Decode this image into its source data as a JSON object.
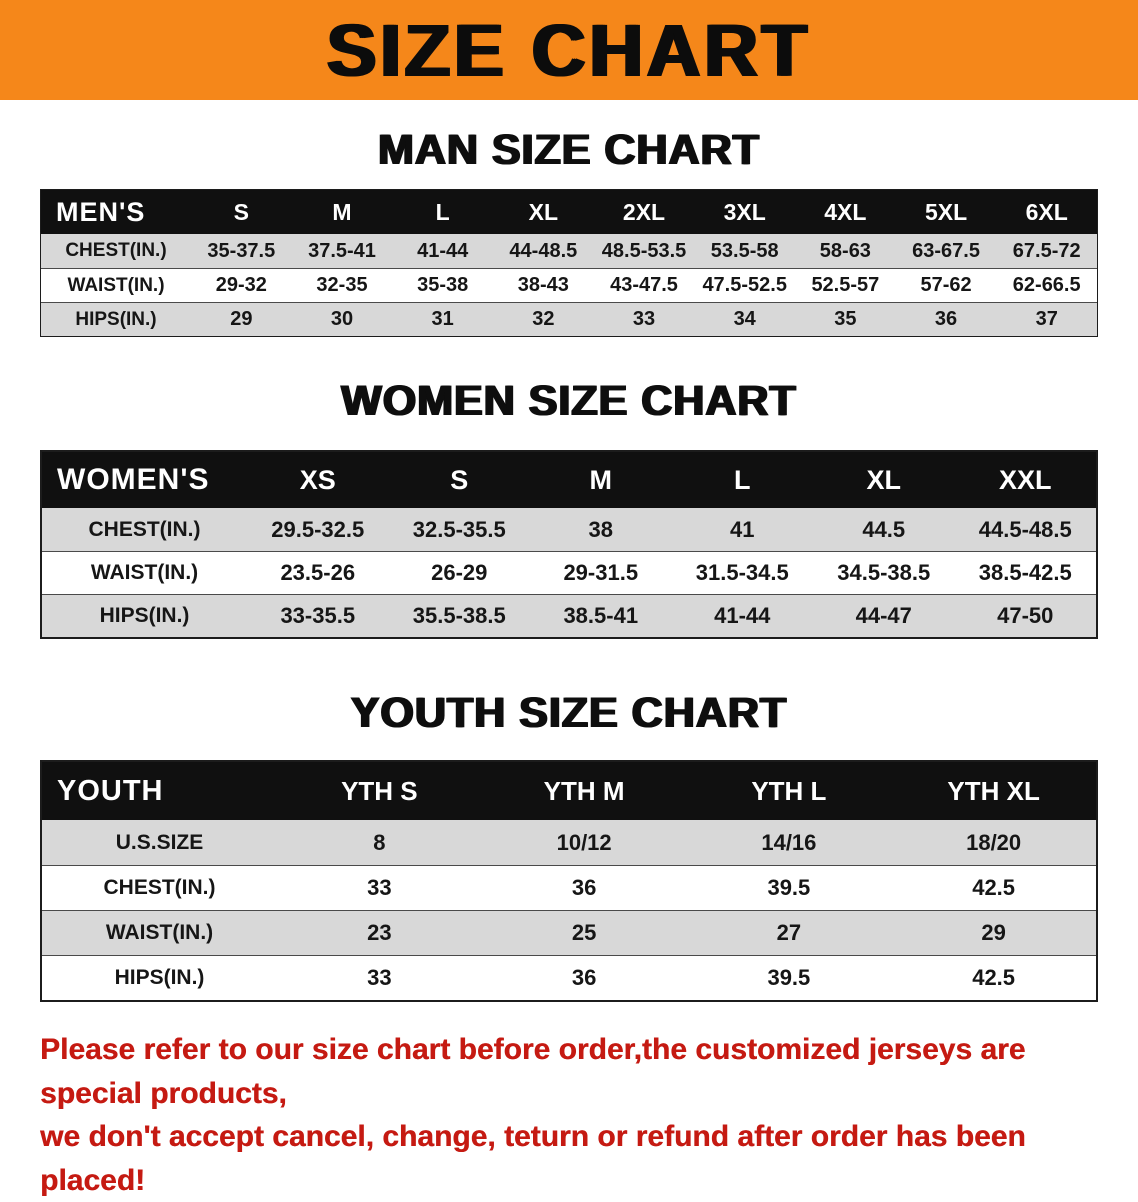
{
  "banner": {
    "title": "SIZE CHART"
  },
  "sections": [
    {
      "heading": "MAN SIZE CHART",
      "table": {
        "header_label": "MEN'S",
        "sizes": [
          "S",
          "M",
          "L",
          "XL",
          "2XL",
          "3XL",
          "4XL",
          "5XL",
          "6XL"
        ],
        "rows": [
          {
            "label": "CHEST(IN.)",
            "values": [
              "35-37.5",
              "37.5-41",
              "41-44",
              "44-48.5",
              "48.5-53.5",
              "53.5-58",
              "58-63",
              "63-67.5",
              "67.5-72"
            ]
          },
          {
            "label": "WAIST(IN.)",
            "values": [
              "29-32",
              "32-35",
              "35-38",
              "38-43",
              "43-47.5",
              "47.5-52.5",
              "52.5-57",
              "57-62",
              "62-66.5"
            ]
          },
          {
            "label": "HIPS(IN.)",
            "values": [
              "29",
              "30",
              "31",
              "32",
              "33",
              "34",
              "35",
              "36",
              "37"
            ]
          }
        ]
      }
    },
    {
      "heading": "WOMEN SIZE CHART",
      "table": {
        "header_label": "WOMEN'S",
        "sizes": [
          "XS",
          "S",
          "M",
          "L",
          "XL",
          "XXL"
        ],
        "rows": [
          {
            "label": "CHEST(IN.)",
            "values": [
              "29.5-32.5",
              "32.5-35.5",
              "38",
              "41",
              "44.5",
              "44.5-48.5"
            ]
          },
          {
            "label": "WAIST(IN.)",
            "values": [
              "23.5-26",
              "26-29",
              "29-31.5",
              "31.5-34.5",
              "34.5-38.5",
              "38.5-42.5"
            ]
          },
          {
            "label": "HIPS(IN.)",
            "values": [
              "33-35.5",
              "35.5-38.5",
              "38.5-41",
              "41-44",
              "44-47",
              "47-50"
            ]
          }
        ]
      }
    },
    {
      "heading": "YOUTH SIZE CHART",
      "table": {
        "header_label": "YOUTH",
        "sizes": [
          "YTH S",
          "YTH M",
          "YTH L",
          "YTH XL"
        ],
        "rows": [
          {
            "label": "U.S.SIZE",
            "values": [
              "8",
              "10/12",
              "14/16",
              "18/20"
            ]
          },
          {
            "label": "CHEST(IN.)",
            "values": [
              "33",
              "36",
              "39.5",
              "42.5"
            ]
          },
          {
            "label": "WAIST(IN.)",
            "values": [
              "23",
              "25",
              "27",
              "29"
            ]
          },
          {
            "label": "HIPS(IN.)",
            "values": [
              "33",
              "36",
              "39.5",
              "42.5"
            ]
          }
        ]
      }
    }
  ],
  "footer": {
    "line1": "Please refer to our size chart before order,the customized jerseys are special products,",
    "line2": "we don't accept cancel, change, teturn or refund after order has been placed!"
  },
  "colors": {
    "banner_bg": "#F5871A",
    "table_header_bg": "#101010",
    "row_shade": "#D8D8D8",
    "footer_text": "#C51A12"
  }
}
